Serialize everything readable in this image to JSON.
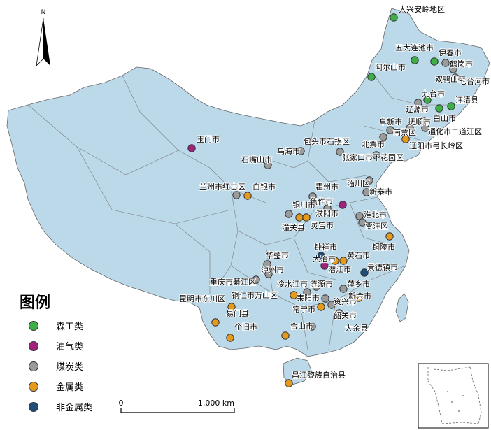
{
  "colors": {
    "land": "#bcd9ea",
    "border": "#666666",
    "forest": "#3fae49",
    "oilgas": "#a0237e",
    "coal": "#9b9b9b",
    "metal": "#e69a1d",
    "nonmetal": "#1f4e79"
  },
  "north_arrow": {
    "label": "N"
  },
  "legend": {
    "title": "图例",
    "items": [
      {
        "key": "forest",
        "label": "森工类"
      },
      {
        "key": "oilgas",
        "label": "油气类"
      },
      {
        "key": "coal",
        "label": "煤炭类"
      },
      {
        "key": "metal",
        "label": "金属类"
      },
      {
        "key": "nonmetal",
        "label": "非金属类"
      }
    ]
  },
  "scale_bar": {
    "start": "0",
    "end": "1,000 km"
  },
  "cities": [
    {
      "name": "大兴安岭地区",
      "type": "forest"
    },
    {
      "name": "五大连池市",
      "type": "forest"
    },
    {
      "name": "伊春市",
      "type": "forest"
    },
    {
      "name": "鹤岗市",
      "type": "coal"
    },
    {
      "name": "阿尔山市",
      "type": "forest"
    },
    {
      "name": "双鸭山市",
      "type": "coal"
    },
    {
      "name": "七台河市",
      "type": "coal"
    },
    {
      "name": "九台市",
      "type": "forest"
    },
    {
      "name": "汪清县",
      "type": "forest"
    },
    {
      "name": "辽源市",
      "type": "coal"
    },
    {
      "name": "白山市",
      "type": "forest"
    },
    {
      "name": "阜新市",
      "type": "coal"
    },
    {
      "name": "抚顺市",
      "type": "coal"
    },
    {
      "name": "南票区",
      "type": "coal"
    },
    {
      "name": "通化市二道江区",
      "type": "coal"
    },
    {
      "name": "北票市",
      "type": "coal"
    },
    {
      "name": "辽阳市弓长岭区",
      "type": "metal"
    },
    {
      "name": "玉门市",
      "type": "oilgas"
    },
    {
      "name": "乌海市",
      "type": "coal"
    },
    {
      "name": "包头市石拐区",
      "type": "coal"
    },
    {
      "name": "石嘴山市",
      "type": "coal"
    },
    {
      "name": "张家口市下花园区",
      "type": "coal"
    },
    {
      "name": "兰州市红古区",
      "type": "coal"
    },
    {
      "name": "白银市",
      "type": "metal"
    },
    {
      "name": "霍州市",
      "type": "coal"
    },
    {
      "name": "淄川区",
      "type": "coal"
    },
    {
      "name": "新泰市",
      "type": "coal"
    },
    {
      "name": "焦作市",
      "type": "coal"
    },
    {
      "name": "濮阳市",
      "type": "oilgas"
    },
    {
      "name": "铜川市",
      "type": "coal"
    },
    {
      "name": "淮北市",
      "type": "coal"
    },
    {
      "name": "潼关县",
      "type": "metal"
    },
    {
      "name": "灵宝市",
      "type": "metal"
    },
    {
      "name": "贾汪区",
      "type": "coal"
    },
    {
      "name": "铜陵市",
      "type": "metal"
    },
    {
      "name": "钟祥市",
      "type": "nonmetal"
    },
    {
      "name": "华蓥市",
      "type": "coal"
    },
    {
      "name": "黄石市",
      "type": "metal"
    },
    {
      "name": "大冶市",
      "type": "metal"
    },
    {
      "name": "景德镇市",
      "type": "nonmetal"
    },
    {
      "name": "潜江市",
      "type": "oilgas"
    },
    {
      "name": "泸州市",
      "type": "coal"
    },
    {
      "name": "重庆市綦江区",
      "type": "coal"
    },
    {
      "name": "冷水江市",
      "type": "coal"
    },
    {
      "name": "涟源市",
      "type": "coal"
    },
    {
      "name": "萍乡市",
      "type": "coal"
    },
    {
      "name": "铜仁市万山区",
      "type": "metal"
    },
    {
      "name": "耒阳市",
      "type": "coal"
    },
    {
      "name": "资兴市",
      "type": "coal"
    },
    {
      "name": "新余市",
      "type": "metal"
    },
    {
      "name": "昆明市东川区",
      "type": "metal"
    },
    {
      "name": "易门县",
      "type": "metal"
    },
    {
      "name": "常宁市",
      "type": "metal"
    },
    {
      "name": "韶关市",
      "type": "coal"
    },
    {
      "name": "个旧市",
      "type": "metal"
    },
    {
      "name": "合山市",
      "type": "coal"
    },
    {
      "name": "大余县",
      "type": "metal"
    },
    {
      "name": "昌江黎族自治县",
      "type": "metal"
    }
  ]
}
